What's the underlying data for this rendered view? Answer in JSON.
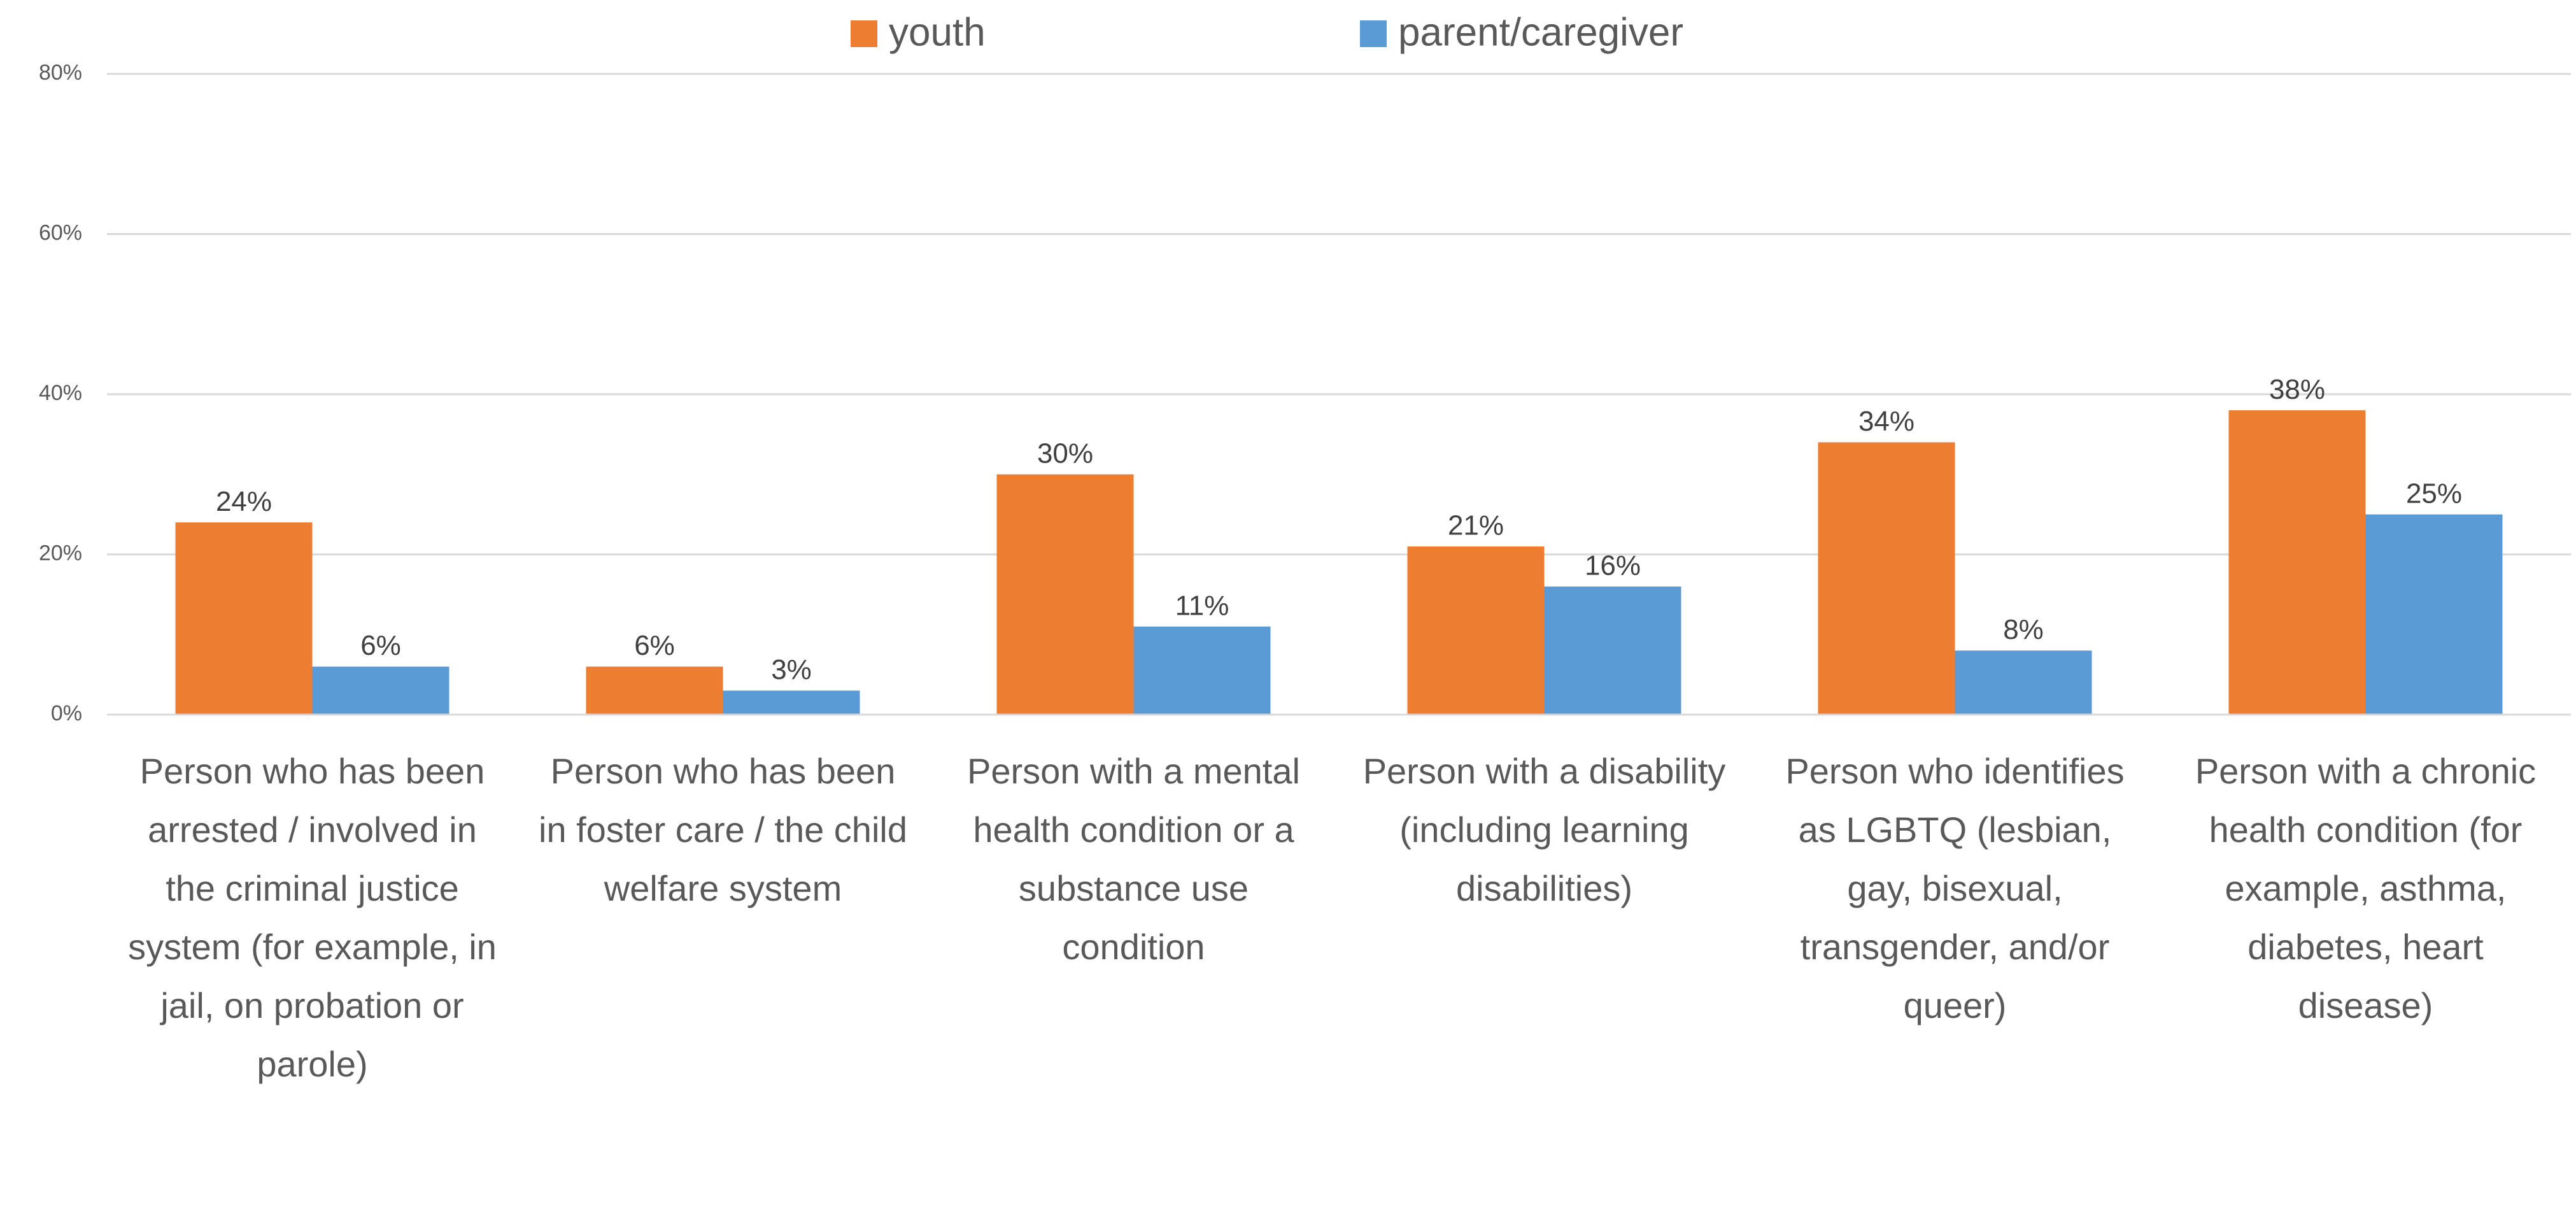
{
  "chart_data": {
    "type": "bar",
    "categories": [
      "Person who has been arrested / involved in the criminal justice system (for example, in jail, on probation or parole)",
      "Person who has been in foster care / the child welfare system",
      "Person with a mental health condition or a substance use condition",
      "Person with a disability (including learning disabilities)",
      "Person who identifies as LGBTQ (lesbian, gay, bisexual, transgender, and/or queer)",
      "Person with a chronic health condition (for example, asthma, diabetes, heart disease)"
    ],
    "series": [
      {
        "name": "youth",
        "color": "#ed7d31",
        "values": [
          24,
          6,
          30,
          21,
          34,
          38
        ],
        "value_labels": [
          "24%",
          "6%",
          "30%",
          "21%",
          "34%",
          "38%"
        ]
      },
      {
        "name": "parent/caregiver",
        "color": "#5b9bd5",
        "values": [
          6,
          3,
          11,
          16,
          8,
          25
        ],
        "value_labels": [
          "6%",
          "3%",
          "11%",
          "16%",
          "8%",
          "25%"
        ]
      }
    ],
    "ylim": [
      0,
      80
    ],
    "yticks": [
      {
        "value": 0,
        "label": "0%"
      },
      {
        "value": 20,
        "label": "20%"
      },
      {
        "value": 40,
        "label": "40%"
      },
      {
        "value": 60,
        "label": "60%"
      },
      {
        "value": 80,
        "label": "80%"
      }
    ],
    "grid": true,
    "legend": "top"
  }
}
